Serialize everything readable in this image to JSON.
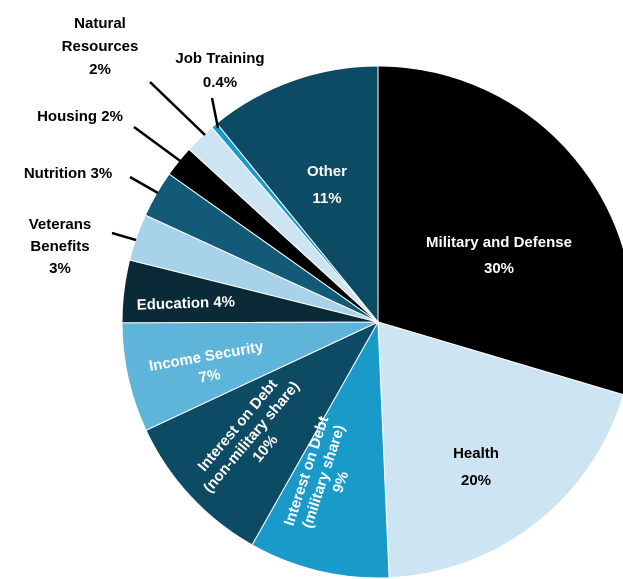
{
  "chart_data": {
    "type": "pie",
    "title": "",
    "slices": [
      {
        "label": "Military and Defense",
        "value_label": "30%",
        "value": 30,
        "color": "#000000"
      },
      {
        "label": "Health",
        "value_label": "20%",
        "value": 20,
        "color": "#cde4f2"
      },
      {
        "label": "Interest on Debt (military share)",
        "value_label": "9%",
        "value": 9,
        "color": "#1a9ac8"
      },
      {
        "label": "Interest on Debt (non-military share)",
        "value_label": "10%",
        "value": 10,
        "color": "#0d4a63"
      },
      {
        "label": "Income Security",
        "value_label": "7%",
        "value": 7,
        "color": "#5fb4d9"
      },
      {
        "label": "Education",
        "value_label": "4%",
        "value": 4,
        "color": "#0a2a38"
      },
      {
        "label": "Veterans Benefits",
        "value_label": "3%",
        "value": 3,
        "color": "#a7d2ea"
      },
      {
        "label": "Nutrition",
        "value_label": "3%",
        "value": 3,
        "color": "#135a78"
      },
      {
        "label": "Housing",
        "value_label": "2%",
        "value": 2,
        "color": "#000000"
      },
      {
        "label": "Natural Resources",
        "value_label": "2%",
        "value": 2,
        "color": "#cde4f2"
      },
      {
        "label": "Job Training",
        "value_label": "0.4%",
        "value": 0.4,
        "color": "#1a9ac8"
      },
      {
        "label": "Other",
        "value_label": "11%",
        "value": 11,
        "color": "#0d4a63"
      }
    ]
  },
  "labels": {
    "military": {
      "line1": "Military and Defense",
      "line2": "30%"
    },
    "health": {
      "line1": "Health",
      "line2": "20%"
    },
    "interest_military": {
      "line1": "Interest on Debt",
      "line2": "(military share)",
      "line3": "9%"
    },
    "interest_nonmilitary": {
      "line1": "Interest on Debt",
      "line2": "(non-military share)",
      "line3": "10%"
    },
    "income_security": {
      "line1": "Income Security",
      "line2": "7%"
    },
    "education": {
      "line1": "Education 4%"
    },
    "veterans": {
      "line1": "Veterans",
      "line2": "Benefits",
      "line3": "3%"
    },
    "nutrition": {
      "line1": "Nutrition 3%"
    },
    "housing": {
      "line1": "Housing 2%"
    },
    "natural_resources": {
      "line1": "Natural",
      "line2": "Resources",
      "line3": "2%"
    },
    "job_training": {
      "line1": "Job Training",
      "line2": "0.4%"
    },
    "other": {
      "line1": "Other",
      "line2": "11%"
    }
  }
}
